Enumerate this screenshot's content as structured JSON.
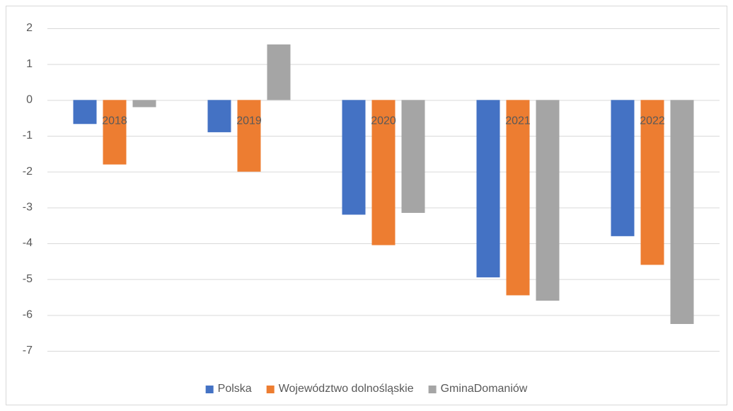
{
  "chart_data": {
    "type": "bar",
    "categories": [
      "2018",
      "2019",
      "2020",
      "2021",
      "2022"
    ],
    "series": [
      {
        "name": "Polska",
        "color": "#4472c4",
        "values": [
          -0.67,
          -0.9,
          -3.2,
          -4.95,
          -3.8
        ]
      },
      {
        "name": "Województwo dolnośląskie",
        "color": "#ed7d31",
        "values": [
          -1.8,
          -2.0,
          -4.05,
          -5.45,
          -4.6
        ]
      },
      {
        "name": "GminaDomaniów",
        "color": "#a5a5a5",
        "values": [
          -0.2,
          1.55,
          -3.15,
          -5.6,
          -6.25
        ]
      }
    ],
    "ylim": [
      -7,
      2
    ],
    "yticks": [
      2,
      1,
      0,
      -1,
      -2,
      -3,
      -4,
      -5,
      -6,
      -7
    ],
    "grid": true,
    "legend": "bottom"
  }
}
